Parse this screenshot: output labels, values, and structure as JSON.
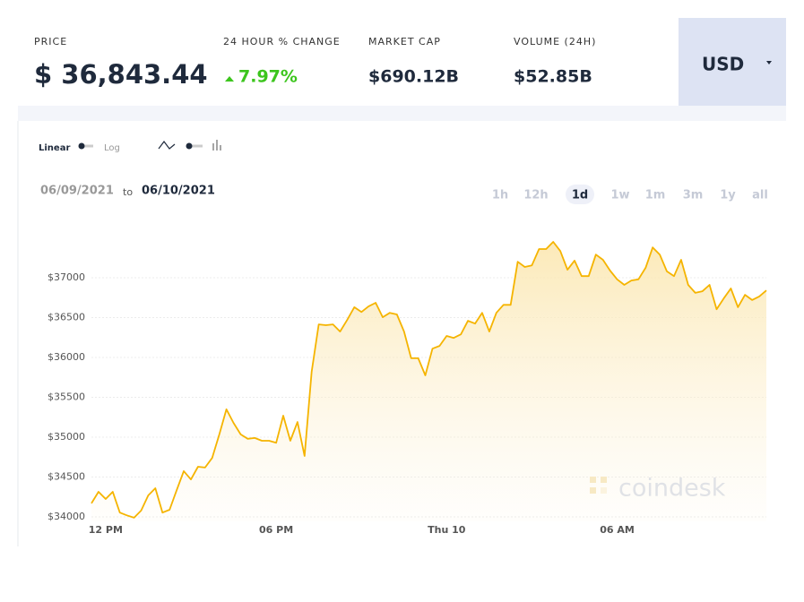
{
  "header": {
    "stats": [
      {
        "label": "PRICE",
        "value": "$ 36,843.44"
      },
      {
        "label": "24 HOUR % CHANGE",
        "value": "7.97%"
      },
      {
        "label": "MARKET CAP",
        "value": "$690.12B"
      },
      {
        "label": "VOLUME (24H)",
        "value": "$52.85B"
      }
    ],
    "currency": "USD"
  },
  "controls": {
    "scale": [
      "Linear",
      "Log"
    ],
    "range_from": "06/09/2021",
    "range_sep": "to",
    "range_to": "06/10/2021",
    "timeframes": [
      "1h",
      "12h",
      "1d",
      "1w",
      "1m",
      "3m",
      "1y",
      "all"
    ],
    "active_index": 2
  },
  "watermark": "coindesk",
  "chart_data": {
    "type": "area",
    "color": "#f5b400",
    "categories": [
      null,
      null,
      "12 PM",
      null,
      null,
      null,
      null,
      null,
      null,
      null,
      null,
      null,
      null,
      null,
      null,
      null,
      null,
      null,
      null,
      null,
      null,
      null,
      null,
      null,
      null,
      null,
      "06 PM",
      null,
      null,
      null,
      null,
      null,
      null,
      null,
      null,
      null,
      null,
      null,
      null,
      null,
      null,
      null,
      null,
      null,
      null,
      null,
      null,
      null,
      null,
      null,
      "Thu 10",
      null,
      null,
      null,
      null,
      null,
      null,
      null,
      null,
      null,
      null,
      null,
      null,
      null,
      null,
      null,
      null,
      null,
      null,
      null,
      null,
      null,
      null,
      null,
      "06 AM",
      null,
      null,
      null,
      null,
      null,
      null,
      null,
      null,
      null,
      null,
      null,
      null,
      null,
      null,
      null,
      null,
      null,
      null,
      null,
      null,
      null
    ],
    "values": [
      34170,
      34315,
      34225,
      34315,
      34055,
      34020,
      33990,
      34080,
      34270,
      34360,
      34055,
      34090,
      34335,
      34575,
      34470,
      34630,
      34620,
      34740,
      35035,
      35350,
      35180,
      35035,
      34980,
      34990,
      34955,
      34955,
      34930,
      35270,
      34955,
      35190,
      34765,
      35820,
      36415,
      36405,
      36415,
      36325,
      36470,
      36630,
      36570,
      36640,
      36685,
      36505,
      36560,
      36540,
      36325,
      35990,
      35990,
      35775,
      36110,
      36145,
      36270,
      36245,
      36290,
      36460,
      36425,
      36560,
      36325,
      36560,
      36660,
      36660,
      37200,
      37135,
      37155,
      37360,
      37360,
      37450,
      37335,
      37100,
      37215,
      37020,
      37020,
      37290,
      37225,
      37090,
      36980,
      36910,
      36965,
      36980,
      37125,
      37380,
      37290,
      37080,
      37020,
      37225,
      36910,
      36810,
      36830,
      36910,
      36605,
      36740,
      36865,
      36630,
      36785,
      36720,
      36765,
      36840
    ],
    "ylim": [
      33950,
      37500
    ],
    "yticks": [
      {
        "value": 34000,
        "label": "$34000"
      },
      {
        "value": 34500,
        "label": "$34500"
      },
      {
        "value": 35000,
        "label": "$35000"
      },
      {
        "value": 35500,
        "label": "$35500"
      },
      {
        "value": 36000,
        "label": "$36000"
      },
      {
        "value": 36500,
        "label": "$36500"
      },
      {
        "value": 37000,
        "label": "$37000"
      }
    ],
    "grid": true
  }
}
